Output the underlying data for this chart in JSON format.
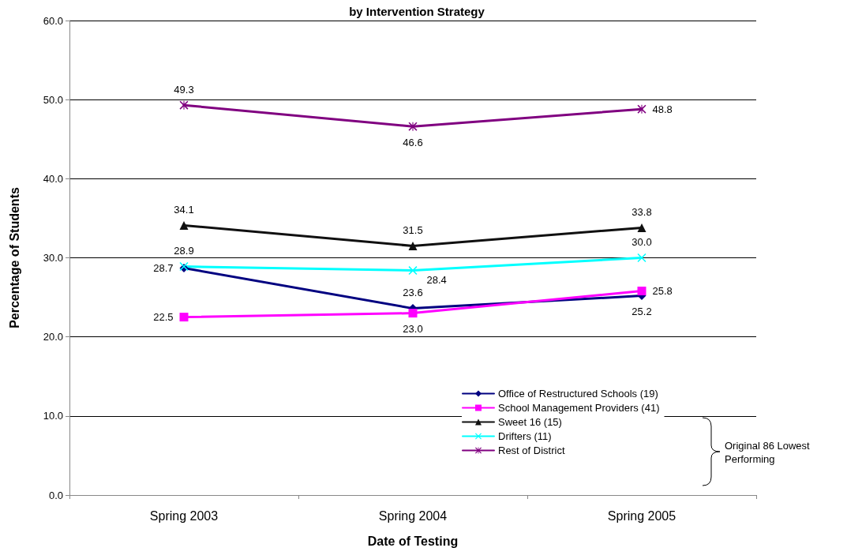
{
  "chart_data": {
    "type": "line",
    "title": "by Intervention Strategy",
    "xlabel": "Date of Testing",
    "ylabel": "Percentage of Students",
    "categories": [
      "Spring 2003",
      "Spring 2004",
      "Spring 2005"
    ],
    "series": [
      {
        "name": "Office of Restructured Schools (19)",
        "color": "#000080",
        "marker": "diamond",
        "values": [
          28.7,
          23.6,
          25.2
        ],
        "value_labels": [
          "28.7",
          "23.6",
          "25.2"
        ]
      },
      {
        "name": "School Management Providers (41)",
        "color": "#ff00ff",
        "marker": "square",
        "values": [
          22.5,
          23.0,
          25.8
        ],
        "value_labels": [
          "22.5",
          "23.0",
          "25.8"
        ]
      },
      {
        "name": "Sweet 16 (15)",
        "color": "#101010",
        "marker": "triangle",
        "values": [
          34.1,
          31.5,
          33.8
        ],
        "value_labels": [
          "34.1",
          "31.5",
          "33.8"
        ]
      },
      {
        "name": "Drifters (11)",
        "color": "#00ffff",
        "marker": "cross",
        "values": [
          28.9,
          28.4,
          30.0
        ],
        "value_labels": [
          "28.9",
          "28.4",
          "30.0"
        ]
      },
      {
        "name": "Rest of District",
        "color": "#800080",
        "marker": "star",
        "values": [
          49.3,
          46.6,
          48.8
        ],
        "value_labels": [
          "49.3",
          "46.6",
          "48.8"
        ]
      }
    ],
    "ylim": [
      0,
      60
    ],
    "yticks": [
      {
        "value": 0,
        "label": "0.0"
      },
      {
        "value": 10,
        "label": "10.0"
      },
      {
        "value": 20,
        "label": "20.0"
      },
      {
        "value": 30,
        "label": "30.0"
      },
      {
        "value": 40,
        "label": "40.0"
      },
      {
        "value": 50,
        "label": "50.0"
      },
      {
        "value": 60,
        "label": "60.0"
      }
    ],
    "grid": "y",
    "legend": "bottom right",
    "line_style": "solid",
    "annotations": [
      "Original 86 Lowest Performing"
    ]
  }
}
